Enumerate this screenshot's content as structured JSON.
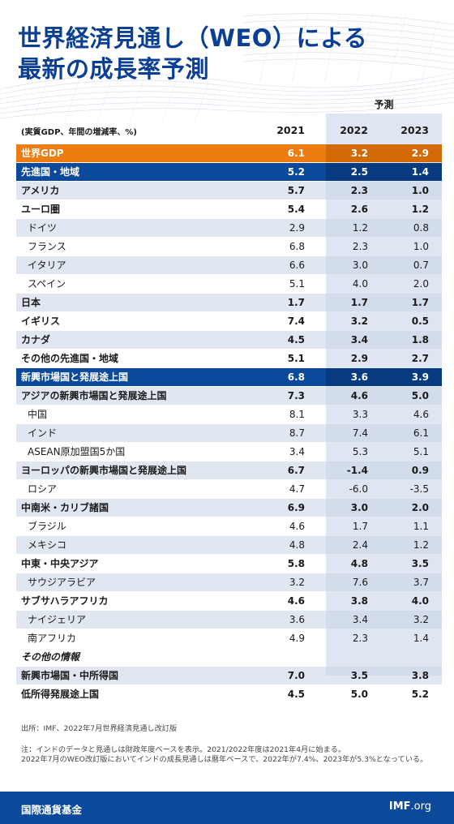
{
  "title": {
    "line1": "世界経済見通し（WEO）による",
    "line2": "最新の成長率予測"
  },
  "forecast_label": "予測",
  "unit_label": "(実質GDP、年間の増減率、%)",
  "years": [
    "2021",
    "2022",
    "2023"
  ],
  "rows": [
    {
      "label": "世界GDP",
      "v2021": "6.1",
      "v2022": "3.2",
      "v2023": "2.9",
      "style": "highlight"
    },
    {
      "label": "先進国・地域",
      "v2021": "5.2",
      "v2022": "2.5",
      "v2023": "1.4",
      "style": "group"
    },
    {
      "label": "アメリカ",
      "v2021": "5.7",
      "v2022": "2.3",
      "v2023": "1.0",
      "style": "bold shaded"
    },
    {
      "label": "ユーロ圏",
      "v2021": "5.4",
      "v2022": "2.6",
      "v2023": "1.2",
      "style": "bold"
    },
    {
      "label": "ドイツ",
      "v2021": "2.9",
      "v2022": "1.2",
      "v2023": "0.8",
      "style": "indent shaded"
    },
    {
      "label": "フランス",
      "v2021": "6.8",
      "v2022": "2.3",
      "v2023": "1.0",
      "style": "indent"
    },
    {
      "label": "イタリア",
      "v2021": "6.6",
      "v2022": "3.0",
      "v2023": "0.7",
      "style": "indent shaded"
    },
    {
      "label": "スペイン",
      "v2021": "5.1",
      "v2022": "4.0",
      "v2023": "2.0",
      "style": "indent"
    },
    {
      "label": "日本",
      "v2021": "1.7",
      "v2022": "1.7",
      "v2023": "1.7",
      "style": "bold shaded"
    },
    {
      "label": "イギリス",
      "v2021": "7.4",
      "v2022": "3.2",
      "v2023": "0.5",
      "style": "bold"
    },
    {
      "label": "カナダ",
      "v2021": "4.5",
      "v2022": "3.4",
      "v2023": "1.8",
      "style": "bold shaded"
    },
    {
      "label": "その他の先進国・地域",
      "v2021": "5.1",
      "v2022": "2.9",
      "v2023": "2.7",
      "style": "bold"
    },
    {
      "label": "新興市場国と発展途上国",
      "v2021": "6.8",
      "v2022": "3.6",
      "v2023": "3.9",
      "style": "group"
    },
    {
      "label": "アジアの新興市場国と発展途上国",
      "v2021": "7.3",
      "v2022": "4.6",
      "v2023": "5.0",
      "style": "bold shaded"
    },
    {
      "label": "中国",
      "v2021": "8.1",
      "v2022": "3.3",
      "v2023": "4.6",
      "style": "indent"
    },
    {
      "label": "インド",
      "v2021": "8.7",
      "v2022": "7.4",
      "v2023": "6.1",
      "style": "indent shaded"
    },
    {
      "label": "ASEAN原加盟国5か国",
      "v2021": "3.4",
      "v2022": "5.3",
      "v2023": "5.1",
      "style": "indent"
    },
    {
      "label": "ヨーロッパの新興市場国と発展途上国",
      "v2021": "6.7",
      "v2022": "-1.4",
      "v2023": "0.9",
      "style": "bold shaded"
    },
    {
      "label": "ロシア",
      "v2021": "4.7",
      "v2022": "-6.0",
      "v2023": "-3.5",
      "style": "indent"
    },
    {
      "label": "中南米・カリブ諸国",
      "v2021": "6.9",
      "v2022": "3.0",
      "v2023": "2.0",
      "style": "bold shaded"
    },
    {
      "label": "ブラジル",
      "v2021": "4.6",
      "v2022": "1.7",
      "v2023": "1.1",
      "style": "indent"
    },
    {
      "label": "メキシコ",
      "v2021": "4.8",
      "v2022": "2.4",
      "v2023": "1.2",
      "style": "indent shaded"
    },
    {
      "label": "中東・中央アジア",
      "v2021": "5.8",
      "v2022": "4.8",
      "v2023": "3.5",
      "style": "bold"
    },
    {
      "label": "サウジアラビア",
      "v2021": "3.2",
      "v2022": "7.6",
      "v2023": "3.7",
      "style": "indent shaded"
    },
    {
      "label": "サブサハラアフリカ",
      "v2021": "4.6",
      "v2022": "3.8",
      "v2023": "4.0",
      "style": "bold"
    },
    {
      "label": "ナイジェリア",
      "v2021": "3.6",
      "v2022": "3.4",
      "v2023": "3.2",
      "style": "indent shaded"
    },
    {
      "label": "南アフリカ",
      "v2021": "4.9",
      "v2022": "2.3",
      "v2023": "1.4",
      "style": "indent"
    },
    {
      "label": "その他の情報",
      "v2021": "",
      "v2022": "",
      "v2023": "",
      "style": "italic"
    },
    {
      "label": "新興市場国・中所得国",
      "v2021": "7.0",
      "v2022": "3.5",
      "v2023": "3.8",
      "style": "bold shaded"
    },
    {
      "label": "低所得発展途上国",
      "v2021": "4.5",
      "v2022": "5.0",
      "v2023": "5.2",
      "style": "bold"
    }
  ],
  "notes": {
    "source": "出所：IMF、2022年7月世界経済見通し改訂版",
    "note1": "注：インドのデータと見通しは財政年度ベースを表示。2021/2022年度は2021年4月に始まる。",
    "note2": "2022年7月のWEO改訂版においてインドの成長見通しは暦年ベースで、2022年が7.4%、2023年が5.3%となっている。"
  },
  "footer": {
    "org": "国際通貨基金",
    "site_bold": "IMF",
    "site_rest": ".org"
  },
  "colors": {
    "title_blue": "#0a3f94",
    "highlight_orange": "#ee7d11",
    "group_blue": "#0b4a9a",
    "forecast_shade": "#dfe6f1"
  }
}
